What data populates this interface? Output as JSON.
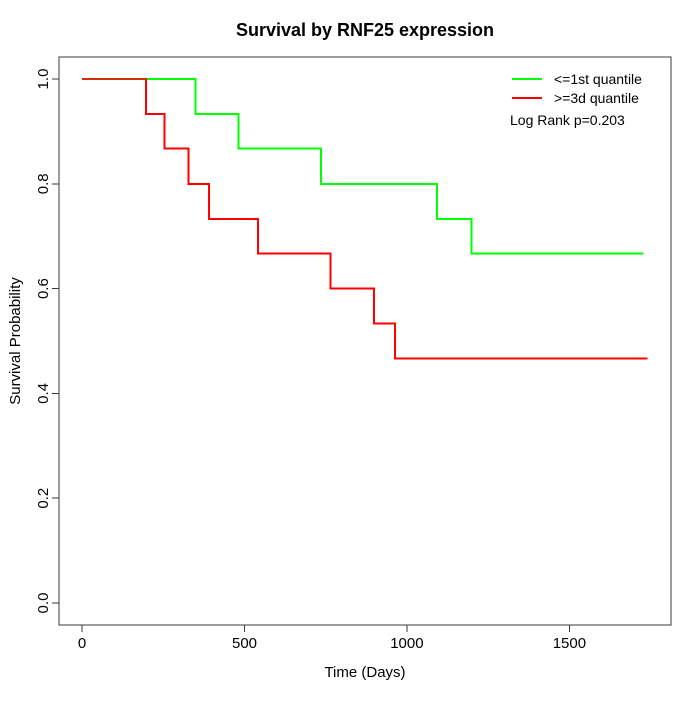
{
  "title": "Survival by RNF25 expression",
  "chart_data": {
    "type": "line",
    "subtype": "kaplan-meier-step",
    "title": "Survival by RNF25 expression",
    "xlabel": "Time (Days)",
    "ylabel": "Survival Probability",
    "xlim": [
      0,
      1743
    ],
    "ylim": [
      0.0,
      1.0
    ],
    "grid": false,
    "legend_position": "top-right",
    "annotation": "Log Rank p=0.203",
    "x_ticks": [
      {
        "value": 0,
        "label": "0"
      },
      {
        "value": 500,
        "label": "500"
      },
      {
        "value": 1000,
        "label": "1000"
      },
      {
        "value": 1500,
        "label": "1500"
      }
    ],
    "y_ticks": [
      {
        "value": 0.0,
        "label": "0.0"
      },
      {
        "value": 0.2,
        "label": "0.2"
      },
      {
        "value": 0.4,
        "label": "0.4"
      },
      {
        "value": 0.6,
        "label": "0.6"
      },
      {
        "value": 0.8,
        "label": "0.8"
      },
      {
        "value": 1.0,
        "label": "1.0"
      }
    ],
    "series": [
      {
        "name": "<=1st quantile",
        "color": "#00ff00",
        "start_survival": 1.0,
        "events": [
          {
            "time": 349,
            "survival": 0.933
          },
          {
            "time": 481,
            "survival": 0.867
          },
          {
            "time": 736,
            "survival": 0.8
          },
          {
            "time": 1092,
            "survival": 0.733
          },
          {
            "time": 1199,
            "survival": 0.667
          }
        ],
        "end_time": 1728
      },
      {
        "name": ">=3d quantile",
        "color": "#ff0000",
        "start_survival": 1.0,
        "events": [
          {
            "time": 197,
            "survival": 0.933
          },
          {
            "time": 254,
            "survival": 0.867
          },
          {
            "time": 328,
            "survival": 0.8
          },
          {
            "time": 391,
            "survival": 0.733
          },
          {
            "time": 541,
            "survival": 0.667
          },
          {
            "time": 765,
            "survival": 0.6
          },
          {
            "time": 899,
            "survival": 0.533
          },
          {
            "time": 963,
            "survival": 0.467
          }
        ],
        "end_time": 1740
      }
    ],
    "overlap_segment": {
      "color": "#cc3300",
      "time_range": [
        0,
        197
      ],
      "survival": 1.0
    }
  }
}
